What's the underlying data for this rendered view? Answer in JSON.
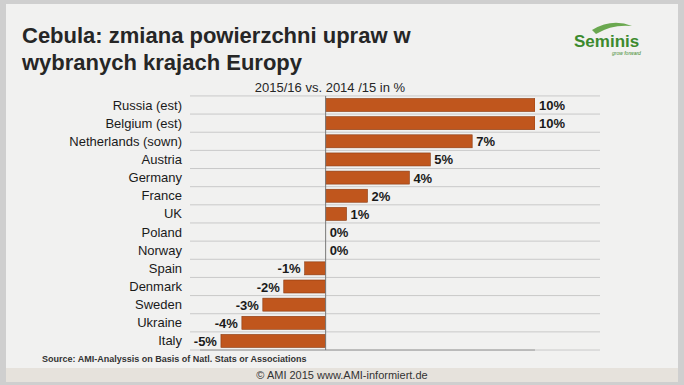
{
  "chart_data": {
    "type": "bar",
    "orientation": "horizontal",
    "title": "Cebula: zmiana powierzchni upraw w wybranych krajach Europy",
    "subtitle": "2015/16 vs. 2014 /15 in %",
    "categories": [
      "Russia (est)",
      "Belgium (est)",
      "Netherlands (sown)",
      "Austria",
      "Germany",
      "France",
      "UK",
      "Poland",
      "Norway",
      "Spain",
      "Denmark",
      "Sweden",
      "Ukraine",
      "Italy"
    ],
    "values": [
      10,
      10,
      7,
      5,
      4,
      2,
      1,
      0,
      0,
      -1,
      -2,
      -3,
      -4,
      -5
    ],
    "value_labels": [
      "10%",
      "10%",
      "7%",
      "5%",
      "4%",
      "2%",
      "1%",
      "0%",
      "0%",
      "-1%",
      "-2%",
      "-3%",
      "-4%",
      "-5%"
    ],
    "color": "#c0561d",
    "xlim": [
      -6,
      10
    ],
    "data_labels": true,
    "tick_labels": "y",
    "annotations": [
      "Source: AMI-Analyssis on Basis of Natl. Stats or Associations",
      "© AMI 2015 www.AMI-informiert.de",
      "Seminis",
      "grow forward"
    ]
  }
}
